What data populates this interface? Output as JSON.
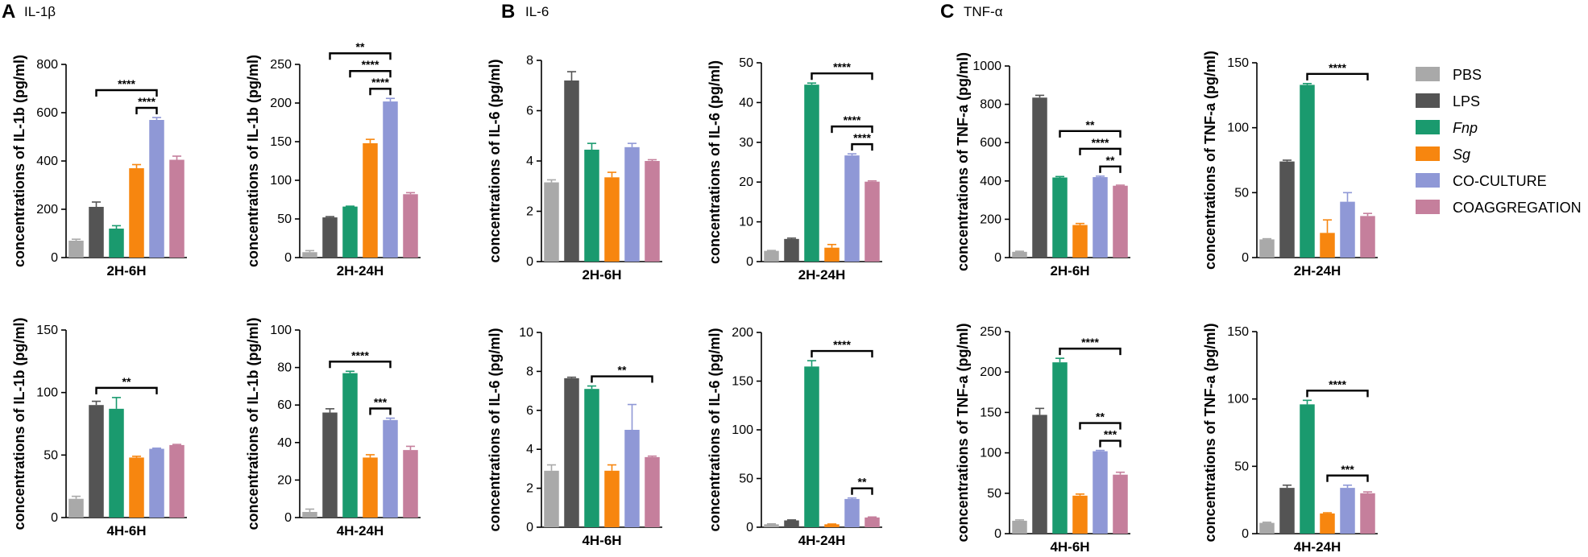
{
  "figure": {
    "panels": [
      {
        "letter": "A",
        "cytokine": "IL-1β"
      },
      {
        "letter": "B",
        "cytokine": "IL-6"
      },
      {
        "letter": "C",
        "cytokine": "TNF-α"
      }
    ]
  },
  "legend": {
    "entries": [
      {
        "label": "PBS",
        "color": "#a9a9a9",
        "italic": false
      },
      {
        "label": "LPS",
        "color": "#545454",
        "italic": false
      },
      {
        "label": "Fnp",
        "color": "#1a9a6e",
        "italic": true
      },
      {
        "label": "Sg",
        "color": "#f7860f",
        "italic": true
      },
      {
        "label": "CO-CULTURE",
        "color": "#8f98d6",
        "italic": false
      },
      {
        "label": "COAGGREGATION",
        "color": "#c57f9c",
        "italic": false
      }
    ]
  },
  "chart_data": [
    {
      "type": "bar",
      "panel": "A",
      "xlabel": "2H-6H",
      "ylabel": "concentrations of IL-1b (pg/ml)",
      "ylim": [
        0,
        800
      ],
      "yticks": [
        "0",
        "200",
        "400",
        "600",
        "800"
      ],
      "categories": [
        "PBS",
        "LPS",
        "Fnp",
        "Sg",
        "CO-CULTURE",
        "COAGGREGATION"
      ],
      "values": [
        70,
        210,
        120,
        370,
        570,
        405
      ],
      "errors": [
        6,
        20,
        12,
        15,
        10,
        15
      ],
      "significance": [
        {
          "from": 1,
          "to": 4,
          "label": "****"
        },
        {
          "from": 3,
          "to": 4,
          "label": "****"
        }
      ]
    },
    {
      "type": "bar",
      "panel": "A",
      "xlabel": "2H-24H",
      "ylabel": "concentrations of IL-1b (pg/ml)",
      "ylim": [
        0,
        250
      ],
      "yticks": [
        "0",
        "50",
        "100",
        "150",
        "200",
        "250"
      ],
      "categories": [
        "PBS",
        "LPS",
        "Fnp",
        "Sg",
        "CO-CULTURE",
        "COAGGREGATION"
      ],
      "values": [
        7,
        52,
        66,
        148,
        202,
        82
      ],
      "errors": [
        2,
        1,
        0.5,
        5,
        4,
        2
      ],
      "significance": [
        {
          "from": 1,
          "to": 4,
          "label": "**"
        },
        {
          "from": 2,
          "to": 4,
          "label": "****"
        },
        {
          "from": 3,
          "to": 4,
          "label": "****"
        }
      ]
    },
    {
      "type": "bar",
      "panel": "A",
      "xlabel": "4H-6H",
      "ylabel": "concentrations of IL-1b (pg/ml)",
      "ylim": [
        0,
        150
      ],
      "yticks": [
        "0",
        "50",
        "100",
        "150"
      ],
      "categories": [
        "PBS",
        "LPS",
        "Fnp",
        "Sg",
        "CO-CULTURE",
        "COAGGREGATION"
      ],
      "values": [
        15,
        90,
        87,
        48,
        55,
        58
      ],
      "errors": [
        2,
        3,
        9,
        1,
        0.5,
        0.5
      ],
      "significance": [
        {
          "from": 1,
          "to": 4,
          "label": "**"
        }
      ]
    },
    {
      "type": "bar",
      "panel": "A",
      "xlabel": "4H-24H",
      "ylabel": "concentrations of IL-1b (pg/ml)",
      "ylim": [
        0,
        100
      ],
      "yticks": [
        "0",
        "20",
        "40",
        "60",
        "80",
        "100"
      ],
      "categories": [
        "PBS",
        "LPS",
        "Fnp",
        "Sg",
        "CO-CULTURE",
        "COAGGREGATION"
      ],
      "values": [
        3,
        56,
        77,
        32,
        52,
        36
      ],
      "errors": [
        1.5,
        2,
        1,
        1.5,
        1,
        2
      ],
      "significance": [
        {
          "from": 1,
          "to": 4,
          "label": "****"
        },
        {
          "from": 3,
          "to": 4,
          "label": "***"
        }
      ]
    },
    {
      "type": "bar",
      "panel": "B",
      "xlabel": "2H-6H",
      "ylabel": "concentrations of IL-6 (pg/ml)",
      "ylim": [
        0,
        8
      ],
      "yticks": [
        "0",
        "2",
        "4",
        "6",
        "8"
      ],
      "categories": [
        "PBS",
        "LPS",
        "Fnp",
        "Sg",
        "CO-CULTURE",
        "COAGGREGATION"
      ],
      "values": [
        3.15,
        7.2,
        4.45,
        3.35,
        4.55,
        4.0
      ],
      "errors": [
        0.1,
        0.35,
        0.25,
        0.2,
        0.15,
        0.05
      ],
      "significance": []
    },
    {
      "type": "bar",
      "panel": "B",
      "xlabel": "2H-24H",
      "ylabel": "concentrations of IL-6 (pg/ml)",
      "ylim": [
        0,
        50
      ],
      "yticks": [
        "0",
        "10",
        "20",
        "30",
        "40",
        "50"
      ],
      "categories": [
        "PBS",
        "LPS",
        "Fnp",
        "Sg",
        "CO-CULTURE",
        "COAGGREGATION"
      ],
      "values": [
        2.7,
        5.7,
        44.5,
        3.5,
        26.7,
        20.1
      ],
      "errors": [
        0.1,
        0.2,
        0.4,
        0.8,
        0.4,
        0.2
      ],
      "significance": [
        {
          "from": 2,
          "to": 5,
          "label": "****"
        },
        {
          "from": 3,
          "to": 5,
          "label": "****"
        },
        {
          "from": 4,
          "to": 5,
          "label": "****"
        }
      ]
    },
    {
      "type": "bar",
      "panel": "B",
      "xlabel": "4H-6H",
      "ylabel": "concentrations of IL-6 (pg/ml)",
      "ylim": [
        0,
        10
      ],
      "yticks": [
        "0",
        "2",
        "4",
        "6",
        "8",
        "10"
      ],
      "categories": [
        "PBS",
        "LPS",
        "Fnp",
        "Sg",
        "CO-CULTURE",
        "COAGGREGATION"
      ],
      "values": [
        2.9,
        7.65,
        7.1,
        2.9,
        5.0,
        3.6
      ],
      "errors": [
        0.3,
        0.05,
        0.15,
        0.3,
        1.3,
        0.05
      ],
      "significance": [
        {
          "from": 2,
          "to": 5,
          "label": "**"
        }
      ]
    },
    {
      "type": "bar",
      "panel": "B",
      "xlabel": "4H-24H",
      "ylabel": "concentrations of IL-6 (pg/ml)",
      "ylim": [
        0,
        200
      ],
      "yticks": [
        "0",
        "50",
        "100",
        "150",
        "200"
      ],
      "categories": [
        "PBS",
        "LPS",
        "Fnp",
        "Sg",
        "CO-CULTURE",
        "COAGGREGATION"
      ],
      "values": [
        3,
        7,
        165,
        3,
        29,
        10
      ],
      "errors": [
        0.5,
        0.5,
        6,
        0.3,
        1,
        0.5
      ],
      "significance": [
        {
          "from": 2,
          "to": 5,
          "label": "****"
        },
        {
          "from": 4,
          "to": 5,
          "label": "**"
        }
      ]
    },
    {
      "type": "bar",
      "panel": "C",
      "xlabel": "2H-6H",
      "ylabel": "concentrations of TNF-a (pg/ml)",
      "ylim": [
        0,
        1000
      ],
      "yticks": [
        "0",
        "200",
        "400",
        "600",
        "800",
        "1000"
      ],
      "categories": [
        "PBS",
        "LPS",
        "Fnp",
        "Sg",
        "CO-CULTURE",
        "COAGGREGATION"
      ],
      "values": [
        30,
        835,
        418,
        170,
        420,
        375
      ],
      "errors": [
        3,
        12,
        5,
        8,
        5,
        3
      ],
      "significance": [
        {
          "from": 2,
          "to": 5,
          "label": "**"
        },
        {
          "from": 3,
          "to": 5,
          "label": "****"
        },
        {
          "from": 4,
          "to": 5,
          "label": "**"
        }
      ]
    },
    {
      "type": "bar",
      "panel": "C",
      "xlabel": "2H-24H",
      "ylabel": "concentrations of TNF-a (pg/ml)",
      "ylim": [
        0,
        150
      ],
      "yticks": [
        "0",
        "50",
        "100",
        "150"
      ],
      "categories": [
        "PBS",
        "LPS",
        "Fnp",
        "Sg",
        "CO-CULTURE",
        "COAGGREGATION"
      ],
      "values": [
        14,
        74,
        133,
        19,
        43,
        32
      ],
      "errors": [
        0.5,
        1,
        1,
        10,
        7,
        2
      ],
      "significance": [
        {
          "from": 2,
          "to": 5,
          "label": "****"
        }
      ]
    },
    {
      "type": "bar",
      "panel": "C",
      "xlabel": "4H-6H",
      "ylabel": "concentrations of TNF-a (pg/ml)",
      "ylim": [
        0,
        250
      ],
      "yticks": [
        "0",
        "50",
        "100",
        "150",
        "200",
        "250"
      ],
      "categories": [
        "PBS",
        "LPS",
        "Fnp",
        "Sg",
        "CO-CULTURE",
        "COAGGREGATION"
      ],
      "values": [
        16,
        147,
        212,
        47,
        102,
        73
      ],
      "errors": [
        1,
        8,
        5,
        2,
        1,
        3
      ],
      "significance": [
        {
          "from": 2,
          "to": 5,
          "label": "****"
        },
        {
          "from": 3,
          "to": 5,
          "label": "**"
        },
        {
          "from": 4,
          "to": 5,
          "label": "***"
        }
      ]
    },
    {
      "type": "bar",
      "panel": "C",
      "xlabel": "4H-24H",
      "ylabel": "concentrations of TNF-a (pg/ml)",
      "ylim": [
        0,
        150
      ],
      "yticks": [
        "0",
        "50",
        "100",
        "150"
      ],
      "categories": [
        "PBS",
        "LPS",
        "Fnp",
        "Sg",
        "CO-CULTURE",
        "COAGGREGATION"
      ],
      "values": [
        8,
        34,
        96,
        15,
        34,
        30
      ],
      "errors": [
        0.5,
        2,
        3,
        0.5,
        2,
        1
      ],
      "significance": [
        {
          "from": 2,
          "to": 5,
          "label": "****"
        },
        {
          "from": 3,
          "to": 5,
          "label": "***"
        }
      ]
    }
  ]
}
